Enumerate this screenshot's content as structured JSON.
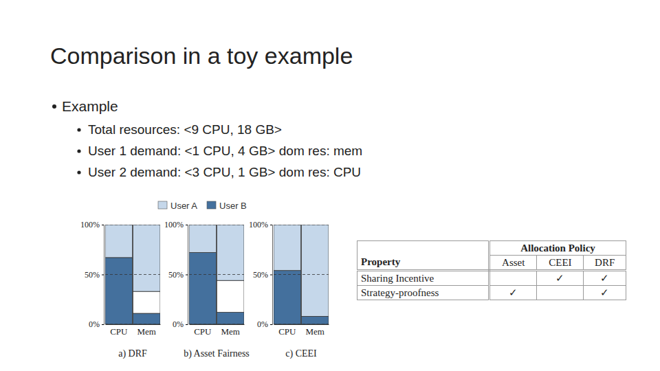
{
  "slide": {
    "title": "Comparison in a toy example",
    "bullets": [
      {
        "text": "Example",
        "children": [
          "Total resources: <9 CPU, 18 GB>",
          "User 1 demand: <1 CPU, 4 GB> dom res: mem",
          "User 2 demand: <3 CPU, 1 GB> dom res: CPU"
        ]
      }
    ]
  },
  "chart_data": [
    {
      "type": "bar",
      "stacked": true,
      "title": "a) DRF",
      "categories": [
        "CPU",
        "Mem"
      ],
      "series": [
        {
          "name": "User B",
          "color": "#44709d",
          "values": [
            67,
            11
          ]
        },
        {
          "color": "#ffffff",
          "values": [
            0,
            22
          ]
        },
        {
          "name": "User A",
          "color": "#c5d7ea",
          "values": [
            33,
            67
          ]
        }
      ],
      "ylim": [
        0,
        100
      ],
      "yticks": [
        {
          "value": 0,
          "label": "0%"
        },
        {
          "value": 50,
          "label": "50%"
        },
        {
          "value": 100,
          "label": "100%"
        }
      ],
      "grid": true,
      "legend": "top"
    },
    {
      "type": "bar",
      "stacked": true,
      "title": "b) Asset Fairness",
      "categories": [
        "CPU",
        "Mem"
      ],
      "series": [
        {
          "color": "#44709d",
          "values": [
            72,
            12
          ]
        },
        {
          "color": "#ffffff",
          "values": [
            0,
            32
          ]
        },
        {
          "color": "#c5d7ea",
          "values": [
            28,
            56
          ]
        }
      ],
      "ylim": [
        0,
        100
      ],
      "yticks": [
        {
          "value": 0,
          "label": "0%"
        },
        {
          "value": 50,
          "label": "50%"
        },
        {
          "value": 100,
          "label": "100%"
        }
      ],
      "grid": true
    },
    {
      "type": "bar",
      "stacked": true,
      "title": "c) CEEI",
      "categories": [
        "CPU",
        "Mem"
      ],
      "series": [
        {
          "color": "#44709d",
          "values": [
            54,
            8
          ]
        },
        {
          "color": "#c5d7ea",
          "values": [
            46,
            92
          ]
        }
      ],
      "ylim": [
        0,
        100
      ],
      "yticks": [
        {
          "value": 0,
          "label": "0%"
        },
        {
          "value": 50,
          "label": "50%"
        },
        {
          "value": 100,
          "label": "100%"
        }
      ],
      "grid": true
    }
  ],
  "table": {
    "group_header": "Allocation Policy",
    "columns": [
      "Property",
      "Asset",
      "CEEI",
      "DRF"
    ],
    "rows": [
      [
        "Sharing Incentive",
        null,
        "✓",
        "✓"
      ],
      [
        "Strategy-proofness",
        "✓",
        null,
        "✓"
      ]
    ]
  }
}
